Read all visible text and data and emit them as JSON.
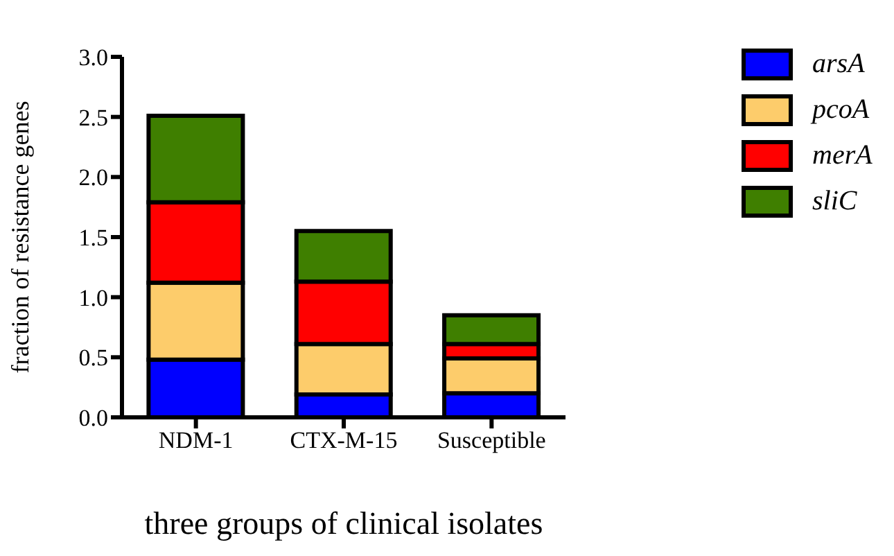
{
  "chart_data": {
    "type": "bar",
    "stacked": true,
    "xlabel": "three groups of clinical isolates",
    "ylabel": "fraction of resistance genes",
    "categories": [
      "NDM-1",
      "CTX-M-15",
      "Susceptible"
    ],
    "series": [
      {
        "name": "arsA",
        "color": "#0000ff",
        "values": [
          0.48,
          0.19,
          0.2
        ]
      },
      {
        "name": "pcoA",
        "color": "#fdcc6b",
        "values": [
          0.64,
          0.42,
          0.29
        ]
      },
      {
        "name": "merA",
        "color": "#ff0000",
        "values": [
          0.67,
          0.52,
          0.12
        ]
      },
      {
        "name": "sliC",
        "color": "#3f7f00",
        "values": [
          0.72,
          0.42,
          0.24
        ]
      }
    ],
    "ylim": [
      0,
      3
    ],
    "yticks": [
      {
        "value": 0,
        "label": "0.0"
      },
      {
        "value": 0.5,
        "label": "0.5"
      },
      {
        "value": 1,
        "label": "1.0"
      },
      {
        "value": 1.5,
        "label": "1.5"
      },
      {
        "value": 2,
        "label": "2.0"
      },
      {
        "value": 2.5,
        "label": "2.5"
      },
      {
        "value": 3,
        "label": "3.0"
      }
    ],
    "grid": false,
    "legend": "top right"
  }
}
